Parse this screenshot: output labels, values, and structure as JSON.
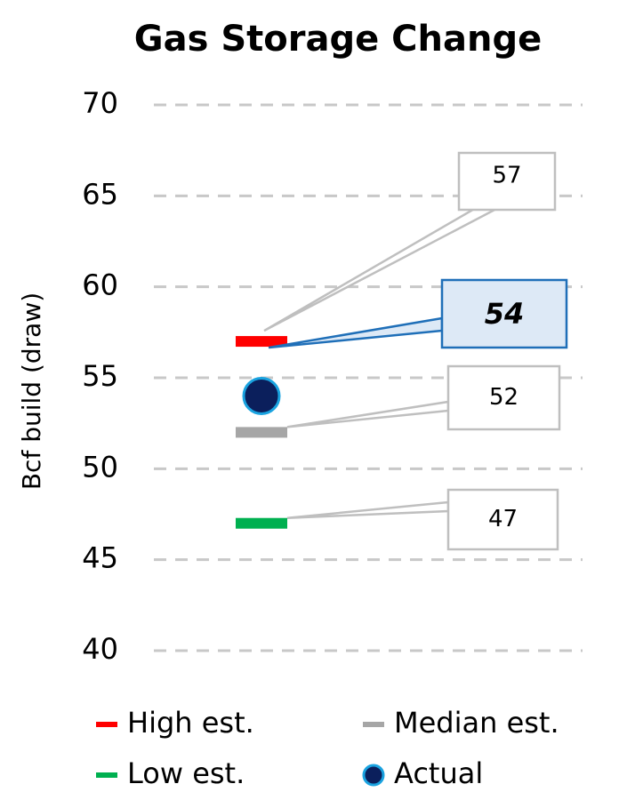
{
  "chart_data": {
    "type": "marker",
    "title": "Gas Storage Change",
    "y_label": "Bcf build (draw)",
    "ylim": [
      40,
      70
    ],
    "yticks": [
      40,
      45,
      50,
      55,
      60,
      65,
      70
    ],
    "grid": true,
    "series": [
      {
        "name": "High est.",
        "color": "#ff0000",
        "values": [
          57
        ]
      },
      {
        "name": "Median est.",
        "color": "#a6a6a6",
        "values": [
          52
        ]
      },
      {
        "name": "Low est.",
        "color": "#00b050",
        "values": [
          47
        ]
      },
      {
        "name": "Actual",
        "color": "#0b1f5c",
        "values": [
          54
        ]
      }
    ]
  }
}
